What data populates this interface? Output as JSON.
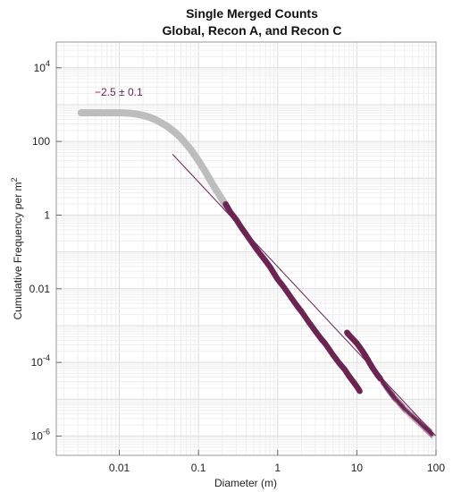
{
  "chart_data": {
    "type": "scatter",
    "title_line1": "Single Merged Counts",
    "title_line2": "Global, Recon A, and Recon C",
    "xlabel": "Diameter (m)",
    "ylabel_main": "Cumulative Frequency per m",
    "ylabel_sup": "2",
    "x_scale": "log",
    "y_scale": "log",
    "xlim": [
      0.0016,
      100
    ],
    "ylim": [
      3e-07,
      50000
    ],
    "grid": true,
    "x_ticks": [
      {
        "value": 0.01,
        "label": "0.01"
      },
      {
        "value": 0.1,
        "label": "0.1"
      },
      {
        "value": 1,
        "label": "1"
      },
      {
        "value": 10,
        "label": "10"
      },
      {
        "value": 100,
        "label": "100"
      }
    ],
    "y_ticks": [
      {
        "value": 10000,
        "base": "10",
        "exp": "4"
      },
      {
        "value": 100,
        "label": "100"
      },
      {
        "value": 1,
        "label": "1"
      },
      {
        "value": 0.01,
        "label": "0.01"
      },
      {
        "value": 0.0001,
        "base": "10",
        "exp": "-4"
      },
      {
        "value": 1e-06,
        "base": "10",
        "exp": "-6"
      }
    ],
    "fit_annotation": "−2.5 ± 0.1",
    "fit_line": {
      "slope": -2.5,
      "x": [
        0.047,
        100
      ],
      "y": [
        45,
        1e-06
      ]
    },
    "colors": {
      "global": "#bdbdbd",
      "recon": "#6b2553",
      "fit": "#6b2553"
    },
    "series": [
      {
        "values_x": [
          0.0033,
          0.004,
          0.005,
          0.006,
          0.008,
          0.01,
          0.013,
          0.016,
          0.02,
          0.025,
          0.03,
          0.04,
          0.05,
          0.06,
          0.08,
          0.1,
          0.12,
          0.15,
          0.2,
          0.23
        ],
        "values_y": [
          600,
          600,
          600,
          600,
          600,
          600,
          590,
          560,
          510,
          440,
          370,
          260,
          180,
          125,
          60,
          30,
          16,
          7,
          2.6,
          1.6
        ]
      },
      {
        "values_x": [
          0.22,
          0.25,
          0.3,
          0.35,
          0.4,
          0.5,
          0.6,
          0.7,
          0.8,
          0.9,
          1.0,
          1.2,
          1.5,
          1.8,
          2.0,
          2.5,
          3.0,
          3.5,
          4.0,
          5.0,
          6.0,
          7.0,
          8.0,
          9.0,
          10,
          11
        ],
        "values_y": [
          2.0,
          1.25,
          0.75,
          0.45,
          0.3,
          0.15,
          0.088,
          0.058,
          0.039,
          0.026,
          0.018,
          0.011,
          0.0055,
          0.0032,
          0.0024,
          0.0012,
          0.0007,
          0.00045,
          0.00032,
          0.00016,
          9.5e-05,
          6.5e-05,
          4.2e-05,
          3e-05,
          2.2e-05,
          1.6e-05
        ]
      },
      {
        "values_x": [
          7.5,
          8,
          9,
          10,
          11,
          12,
          13,
          14,
          15,
          16,
          18,
          20,
          22,
          24,
          26,
          28,
          30,
          35,
          40,
          50,
          60,
          70,
          80,
          90
        ],
        "values_y": [
          0.00065,
          0.00055,
          0.00042,
          0.00033,
          0.00025,
          0.00019,
          0.000145,
          0.00011,
          8.5e-05,
          6.8e-05,
          4.7e-05,
          3.5e-05,
          2.6e-05,
          2e-05,
          1.6e-05,
          1.3e-05,
          1.1e-05,
          7.5e-06,
          5.5e-06,
          3.5e-06,
          2.5e-06,
          1.8e-06,
          1.4e-06,
          1.1e-06
        ]
      }
    ]
  }
}
